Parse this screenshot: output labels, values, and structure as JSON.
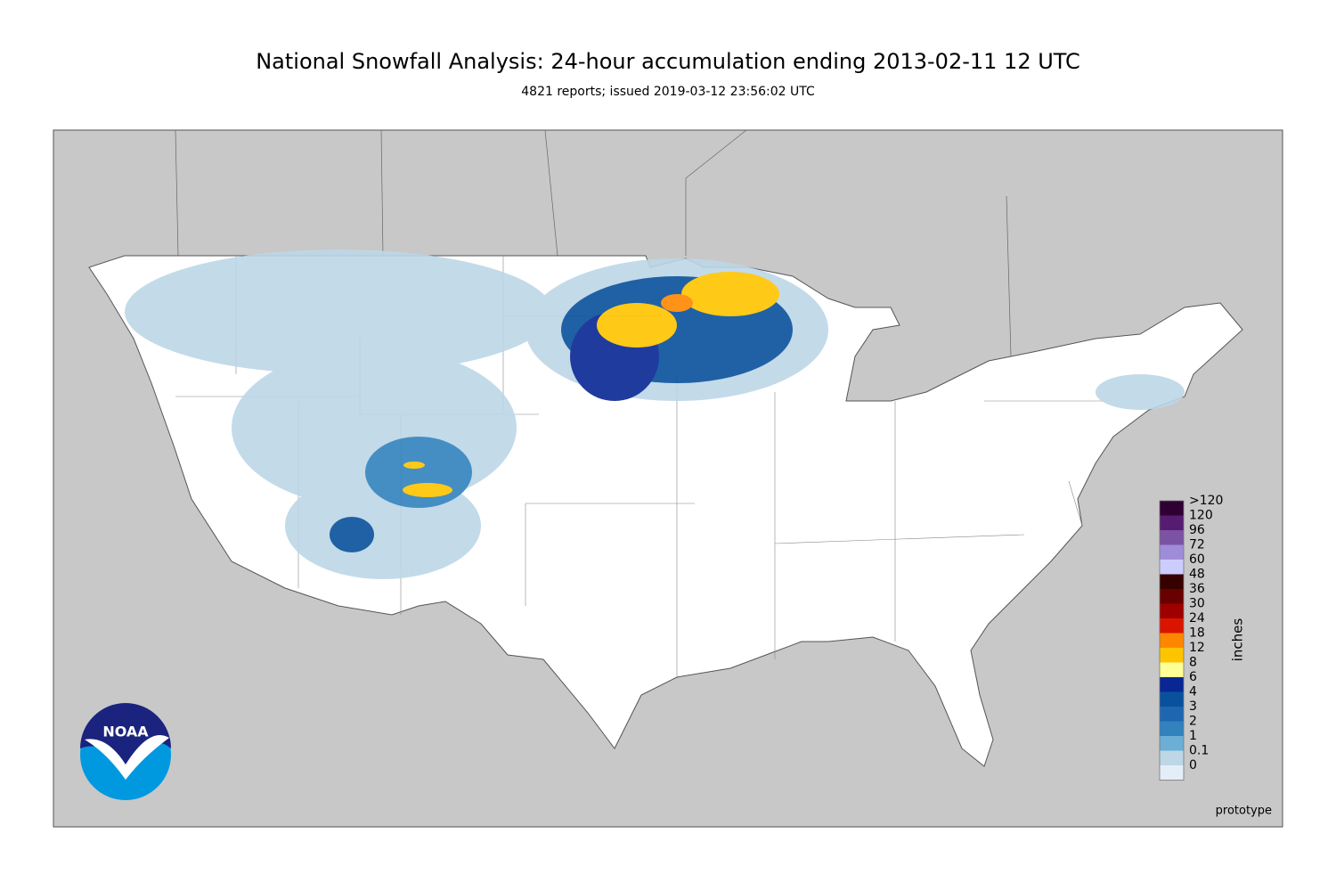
{
  "header": {
    "title": "National Snowfall Analysis: 24-hour accumulation ending 2013-02-11 12 UTC",
    "subtitle": "4821 reports; issued 2019-03-12 23:56:02 UTC"
  },
  "legend": {
    "unit": "inches",
    "items": [
      {
        "label": ">120",
        "color": "#2e0033"
      },
      {
        "label": "120",
        "color": "#561c72"
      },
      {
        "label": "96",
        "color": "#7c52a5"
      },
      {
        "label": "72",
        "color": "#9f8cd8"
      },
      {
        "label": "60",
        "color": "#ccccff"
      },
      {
        "label": "48",
        "color": "#360000"
      },
      {
        "label": "36",
        "color": "#690000"
      },
      {
        "label": "30",
        "color": "#9e0000"
      },
      {
        "label": "24",
        "color": "#db1400"
      },
      {
        "label": "18",
        "color": "#ff8700"
      },
      {
        "label": "12",
        "color": "#ffc400"
      },
      {
        "label": "8",
        "color": "#ffff96"
      },
      {
        "label": "6",
        "color": "#082694"
      },
      {
        "label": "4",
        "color": "#08519c"
      },
      {
        "label": "3",
        "color": "#1f66b0"
      },
      {
        "label": "2",
        "color": "#3182bd"
      },
      {
        "label": "1",
        "color": "#6baed6"
      },
      {
        "label": "0.1",
        "color": "#bdd7e7"
      },
      {
        "label": "0",
        "color": "#e4eef9"
      }
    ]
  },
  "logo": {
    "text": "NOAA"
  },
  "footer": {
    "note": "prototype"
  }
}
